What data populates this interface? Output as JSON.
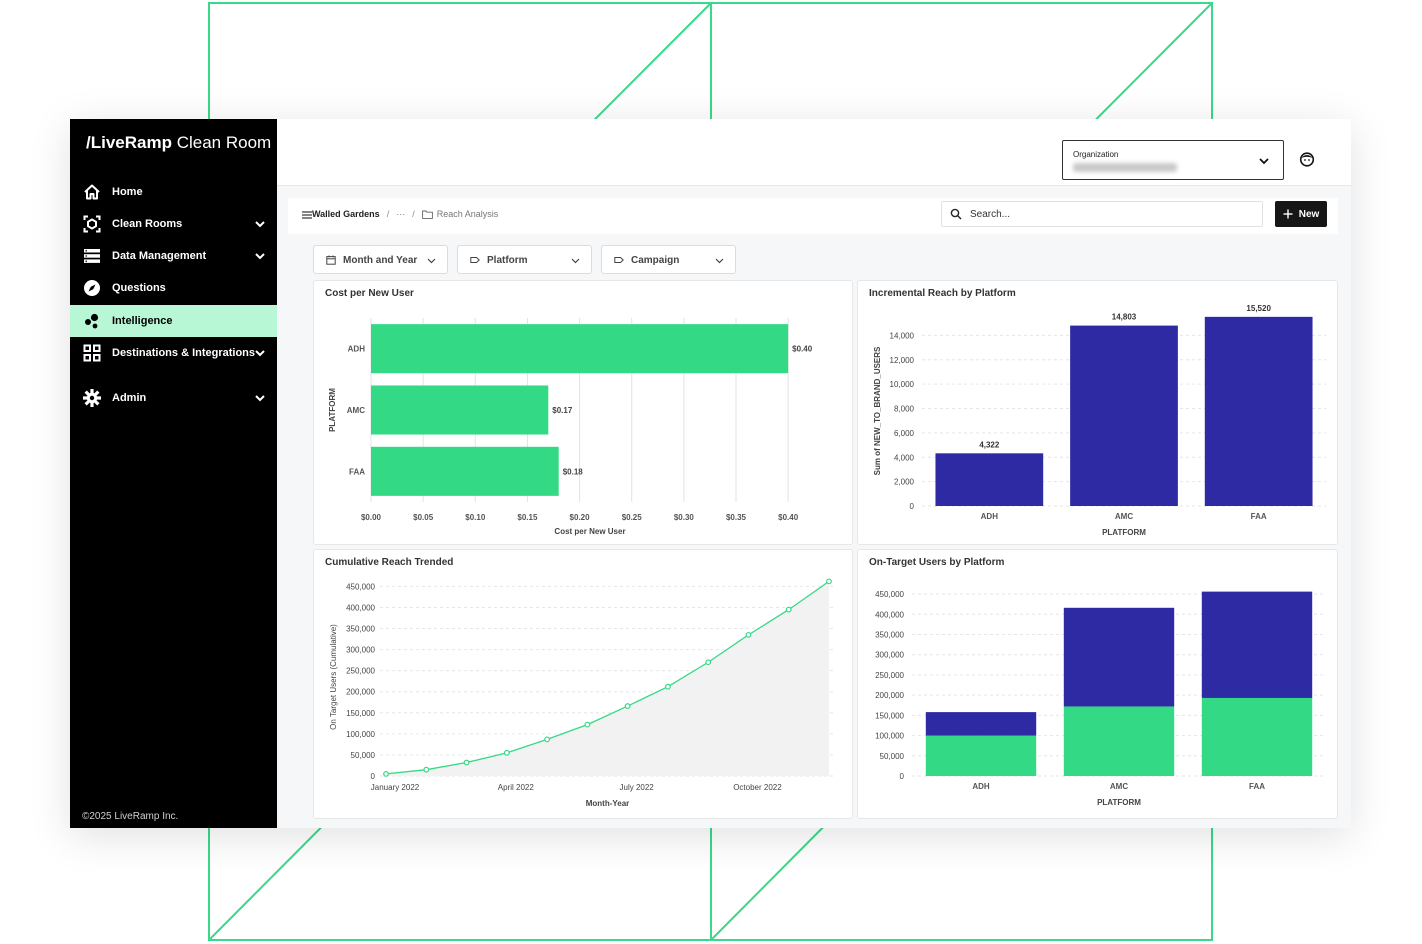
{
  "brand": {
    "logo_bold": "/LiveRamp",
    "logo_regular": " Clean Room"
  },
  "sidebar": {
    "items": [
      {
        "label": "Home",
        "icon": "home-icon"
      },
      {
        "label": "Clean Rooms",
        "icon": "clean-room-icon",
        "expandable": true
      },
      {
        "label": "Data Management",
        "icon": "database-icon",
        "expandable": true
      },
      {
        "label": "Questions",
        "icon": "compass-icon"
      },
      {
        "label": "Intelligence",
        "icon": "intelligence-icon",
        "active": true
      },
      {
        "label": "Destinations & Integrations",
        "icon": "grid-icon",
        "expandable": true
      },
      {
        "label": "Admin",
        "icon": "gear-icon",
        "expandable": true
      }
    ],
    "footer": "©2025 LiveRamp Inc."
  },
  "header": {
    "org_label": "Organization",
    "org_value_redacted": true
  },
  "breadcrumb": {
    "root": "Walled Gardens",
    "ellipsis": "···",
    "current": "Reach Analysis"
  },
  "search": {
    "placeholder": "Search..."
  },
  "new_button": {
    "label": "New",
    "icon": "plus-icon"
  },
  "filters": [
    {
      "label": "Month and Year",
      "icon": "calendar-icon"
    },
    {
      "label": "Platform",
      "icon": "tag-icon"
    },
    {
      "label": "Campaign",
      "icon": "tag-icon"
    }
  ],
  "colors": {
    "green": "#34d986",
    "navy": "#2d2aa3",
    "sidebar": "#000000",
    "active_nav": "#b7f7d6",
    "line": "#34d986"
  },
  "chart_data": [
    {
      "id": "cost",
      "type": "bar",
      "orientation": "horizontal",
      "title": "Cost per New User",
      "categories": [
        "ADH",
        "AMC",
        "FAA"
      ],
      "values": [
        0.4,
        0.17,
        0.18
      ],
      "data_labels": [
        "$0.40",
        "$0.17",
        "$0.18"
      ],
      "xlabel": "Cost per New User",
      "ylabel": "PLATFORM",
      "xticks": [
        "$0.00",
        "$0.05",
        "$0.10",
        "$0.15",
        "$0.20",
        "$0.25",
        "$0.30",
        "$0.35",
        "$0.40"
      ],
      "xlim": [
        0,
        0.42
      ],
      "grid": true
    },
    {
      "id": "incremental",
      "type": "bar",
      "title": "Incremental Reach by Platform",
      "categories": [
        "ADH",
        "AMC",
        "FAA"
      ],
      "values": [
        4322,
        14803,
        15520
      ],
      "data_labels": [
        "4,322",
        "14,803",
        "15,520"
      ],
      "xlabel": "PLATFORM",
      "ylabel": "Sum of NEW_TO_BRAND_USERS",
      "yticks": [
        "0",
        "2,000",
        "4,000",
        "6,000",
        "8,000",
        "10,000",
        "12,000",
        "14,000"
      ],
      "ylim": [
        0,
        16000
      ],
      "grid": true
    },
    {
      "id": "cumulative",
      "type": "area",
      "title": "Cumulative Reach Trended",
      "x": [
        "2022-01",
        "2022-02",
        "2022-03",
        "2022-04",
        "2022-05",
        "2022-06",
        "2022-07",
        "2022-08",
        "2022-09",
        "2022-10",
        "2022-11",
        "2022-12"
      ],
      "values": [
        5000,
        15000,
        32000,
        55000,
        87000,
        122000,
        166000,
        212000,
        270000,
        335000,
        395000,
        462000
      ],
      "xticks": [
        "January 2022",
        "April 2022",
        "July 2022",
        "October 2022"
      ],
      "xlabel": "Month-Year",
      "ylabel": "On Target Users (Cumulative)",
      "yticks": [
        "0",
        "50,000",
        "100,000",
        "150,000",
        "200,000",
        "250,000",
        "300,000",
        "350,000",
        "400,000",
        "450,000"
      ],
      "ylim": [
        0,
        470000
      ],
      "grid": true
    },
    {
      "id": "ontarget",
      "type": "bar",
      "stacked": true,
      "title": "On-Target Users by Platform",
      "categories": [
        "ADH",
        "AMC",
        "FAA"
      ],
      "series": [
        {
          "values": [
            100000,
            172000,
            193000
          ],
          "color": "#34d986"
        },
        {
          "values": [
            58000,
            244000,
            263000
          ],
          "color": "#2d2aa3"
        }
      ],
      "xlabel": "PLATFORM",
      "yticks": [
        "0",
        "50,000",
        "100,000",
        "150,000",
        "200,000",
        "250,000",
        "300,000",
        "350,000",
        "400,000",
        "450,000"
      ],
      "ylim": [
        0,
        460000
      ],
      "grid": true
    }
  ]
}
